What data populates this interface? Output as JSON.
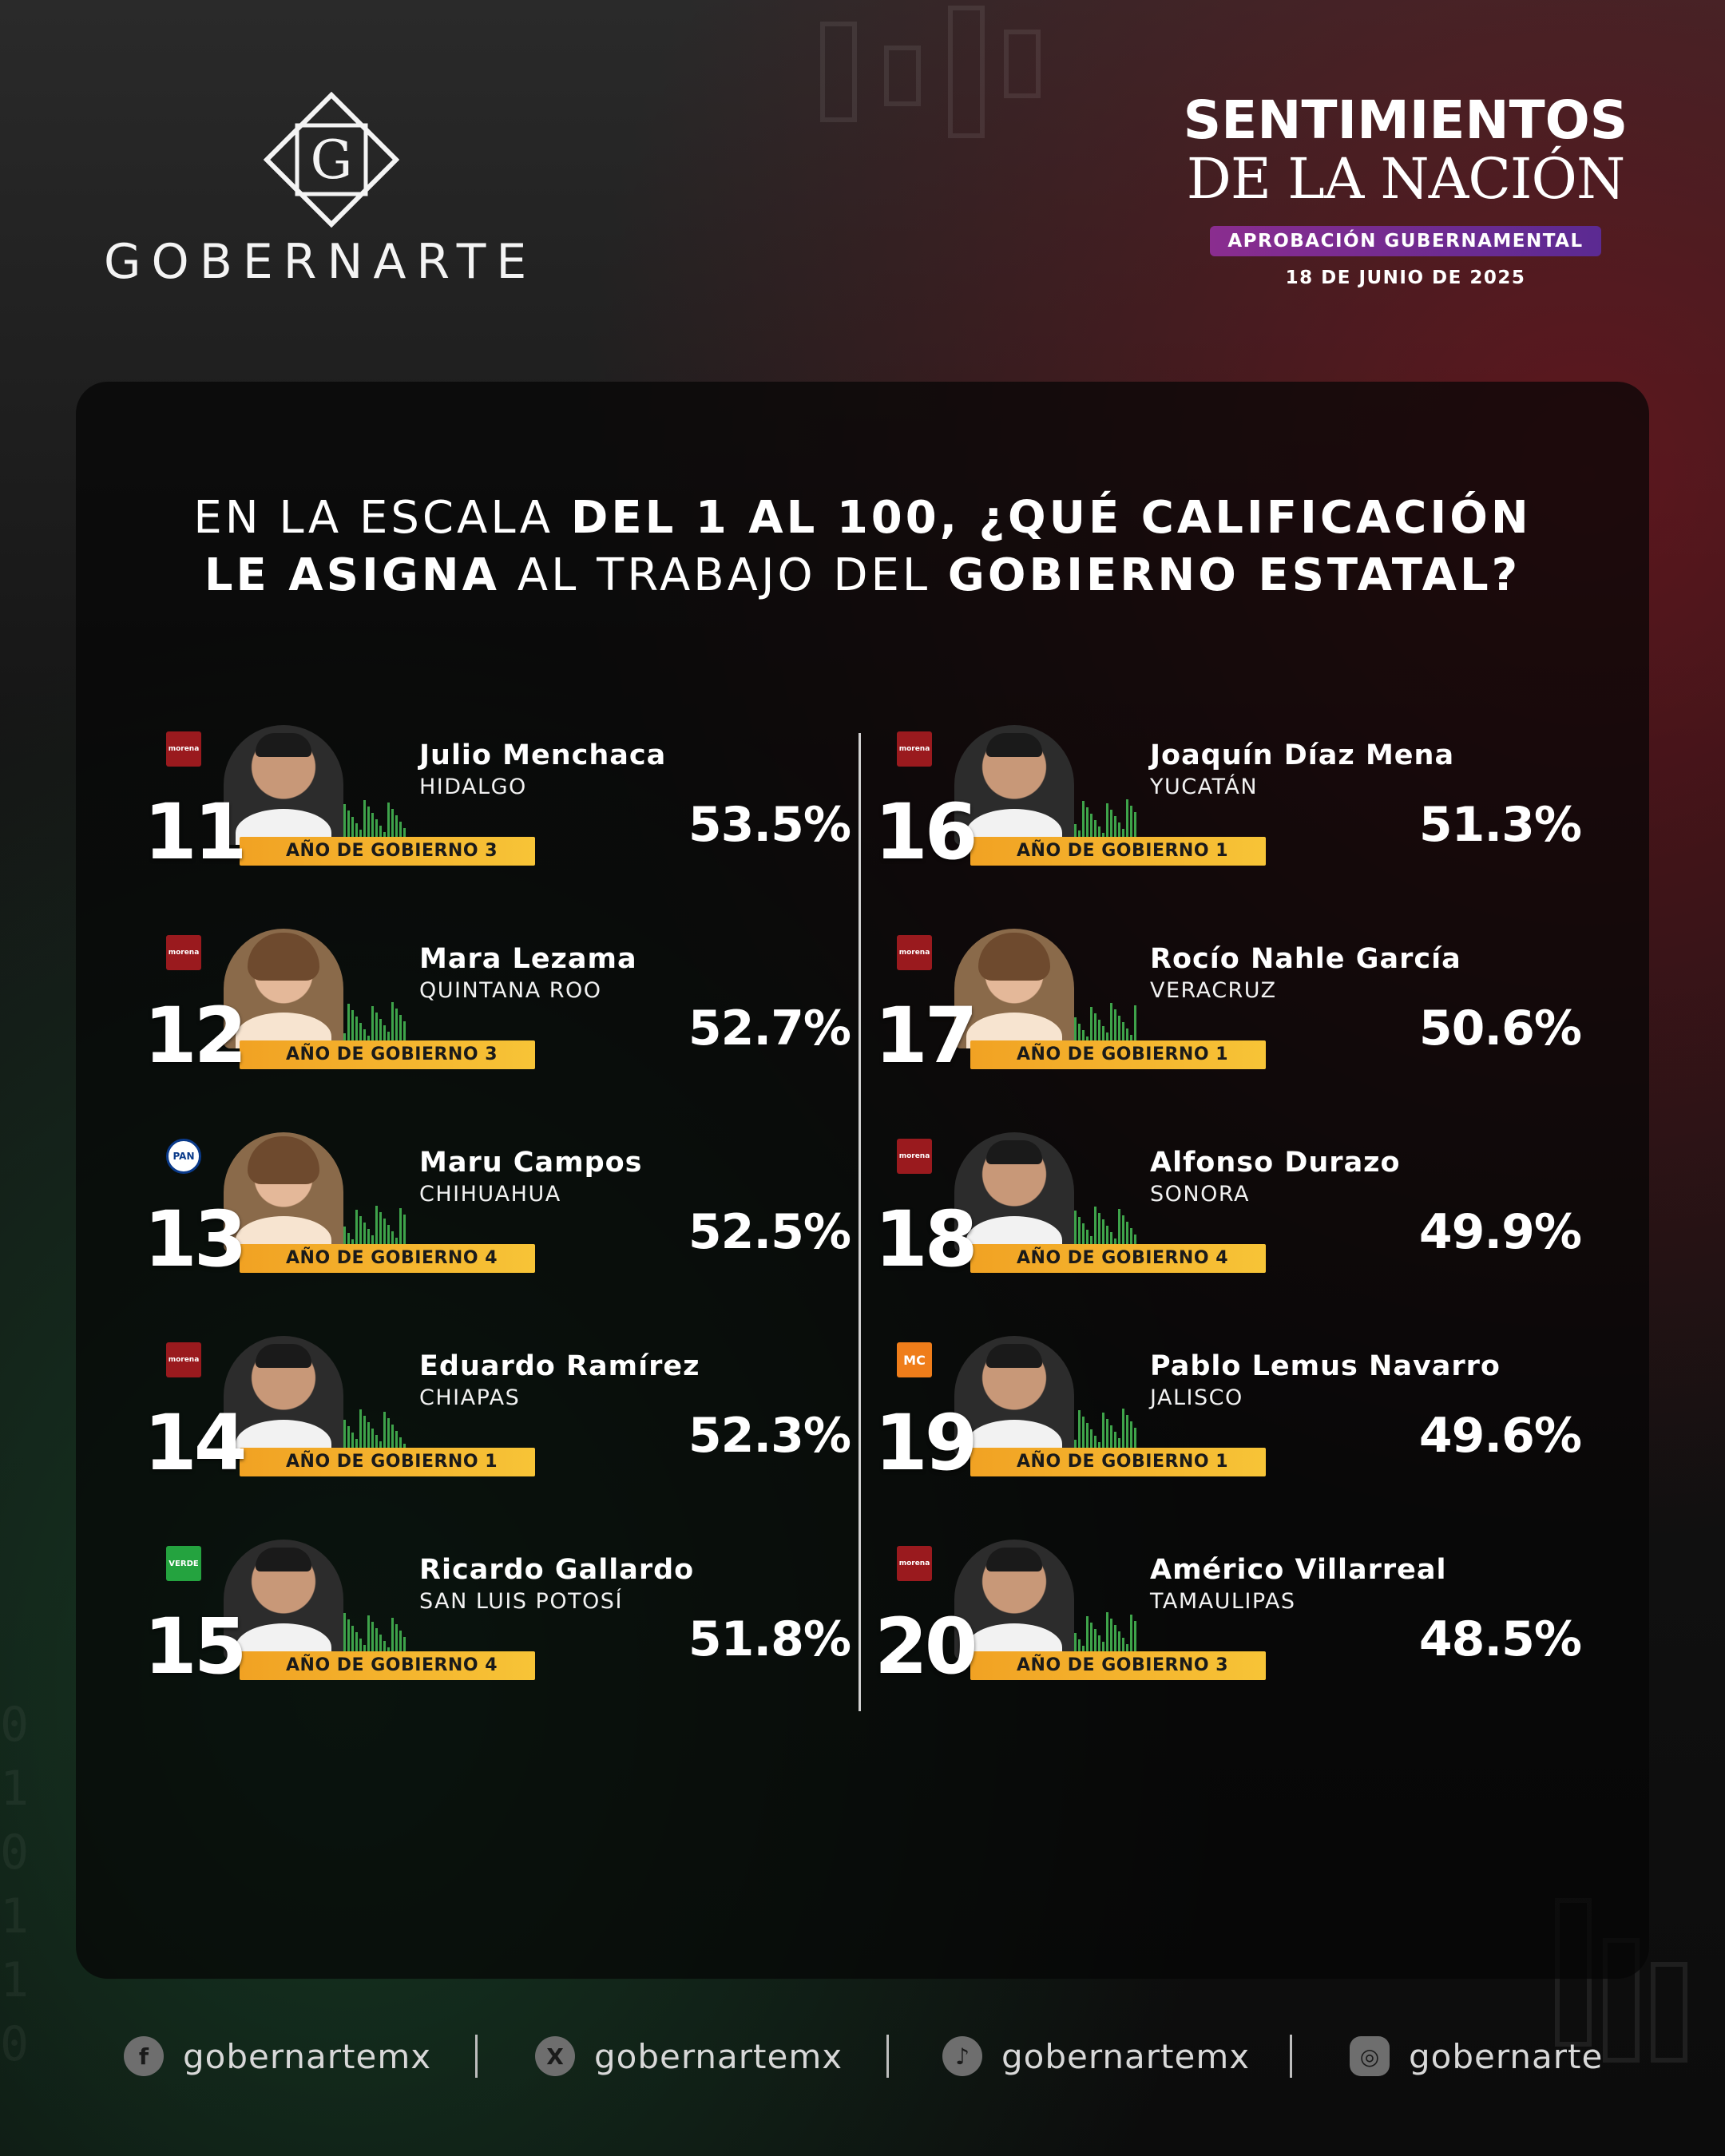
{
  "brand": {
    "logo_letter": "G",
    "logo_text": "GOBERNARTE",
    "title_line1": "SENTIMIENTOS",
    "title_line2": "DE LA NACIÓN",
    "tag": "APROBACIÓN GUBERNAMENTAL",
    "date": "18 DE JUNIO DE 2025"
  },
  "question": {
    "l1a": "EN LA ESCALA ",
    "l1b": "DEL 1 AL 100, ¿QUÉ CALIFICACIÓN",
    "l2a": "LE ASIGNA",
    "l2b": " AL TRABAJO DEL ",
    "l2c": "GOBIERNO ESTATAL?"
  },
  "bar_prefix_bold": "AÑO",
  "bar_prefix": " DE GOBIERNO ",
  "entries": [
    {
      "rank": "11",
      "name": "Julio Menchaca",
      "state": "HIDALGO",
      "year": "3",
      "score": "53.5%",
      "party": "morena",
      "party_label": "morena",
      "gender": "m"
    },
    {
      "rank": "12",
      "name": "Mara Lezama",
      "state": "QUINTANA ROO",
      "year": "3",
      "score": "52.7%",
      "party": "morena",
      "party_label": "morena",
      "gender": "f"
    },
    {
      "rank": "13",
      "name": "Maru Campos",
      "state": "CHIHUAHUA",
      "year": "4",
      "score": "52.5%",
      "party": "pan",
      "party_label": "PAN",
      "gender": "f"
    },
    {
      "rank": "14",
      "name": "Eduardo Ramírez",
      "state": "CHIAPAS",
      "year": "1",
      "score": "52.3%",
      "party": "morena",
      "party_label": "morena",
      "gender": "m"
    },
    {
      "rank": "15",
      "name": "Ricardo Gallardo",
      "state": "SAN LUIS POTOSÍ",
      "year": "4",
      "score": "51.8%",
      "party": "verde",
      "party_label": "VERDE",
      "gender": "m"
    },
    {
      "rank": "16",
      "name": "Joaquín Díaz Mena",
      "state": "YUCATÁN",
      "year": "1",
      "score": "51.3%",
      "party": "morena",
      "party_label": "morena",
      "gender": "m"
    },
    {
      "rank": "17",
      "name": "Rocío Nahle García",
      "state": "VERACRUZ",
      "year": "1",
      "score": "50.6%",
      "party": "morena",
      "party_label": "morena",
      "gender": "f"
    },
    {
      "rank": "18",
      "name": "Alfonso Durazo",
      "state": "SONORA",
      "year": "4",
      "score": "49.9%",
      "party": "morena",
      "party_label": "morena",
      "gender": "m"
    },
    {
      "rank": "19",
      "name": "Pablo Lemus Navarro",
      "state": "JALISCO",
      "year": "1",
      "score": "49.6%",
      "party": "mc",
      "party_label": "MC",
      "gender": "m"
    },
    {
      "rank": "20",
      "name": "Américo Villarreal",
      "state": "TAMAULIPAS",
      "year": "3",
      "score": "48.5%",
      "party": "morena",
      "party_label": "morena",
      "gender": "m"
    }
  ],
  "social": [
    {
      "icon": "facebook-icon",
      "glyph": "f",
      "handle": "gobernartemx"
    },
    {
      "icon": "x-icon",
      "glyph": "X",
      "handle": "gobernartemx"
    },
    {
      "icon": "tiktok-icon",
      "glyph": "♪",
      "handle": "gobernartemx"
    },
    {
      "icon": "instagram-icon",
      "glyph": "◎",
      "handle": "gobernarte"
    }
  ],
  "colors": {
    "bar": "#f1a223",
    "accent_purple": "#8a2d8f",
    "morena": "#9a1a1e",
    "pan": "#0a3a8a",
    "verde": "#24a33f",
    "mc": "#ef7d1a"
  }
}
